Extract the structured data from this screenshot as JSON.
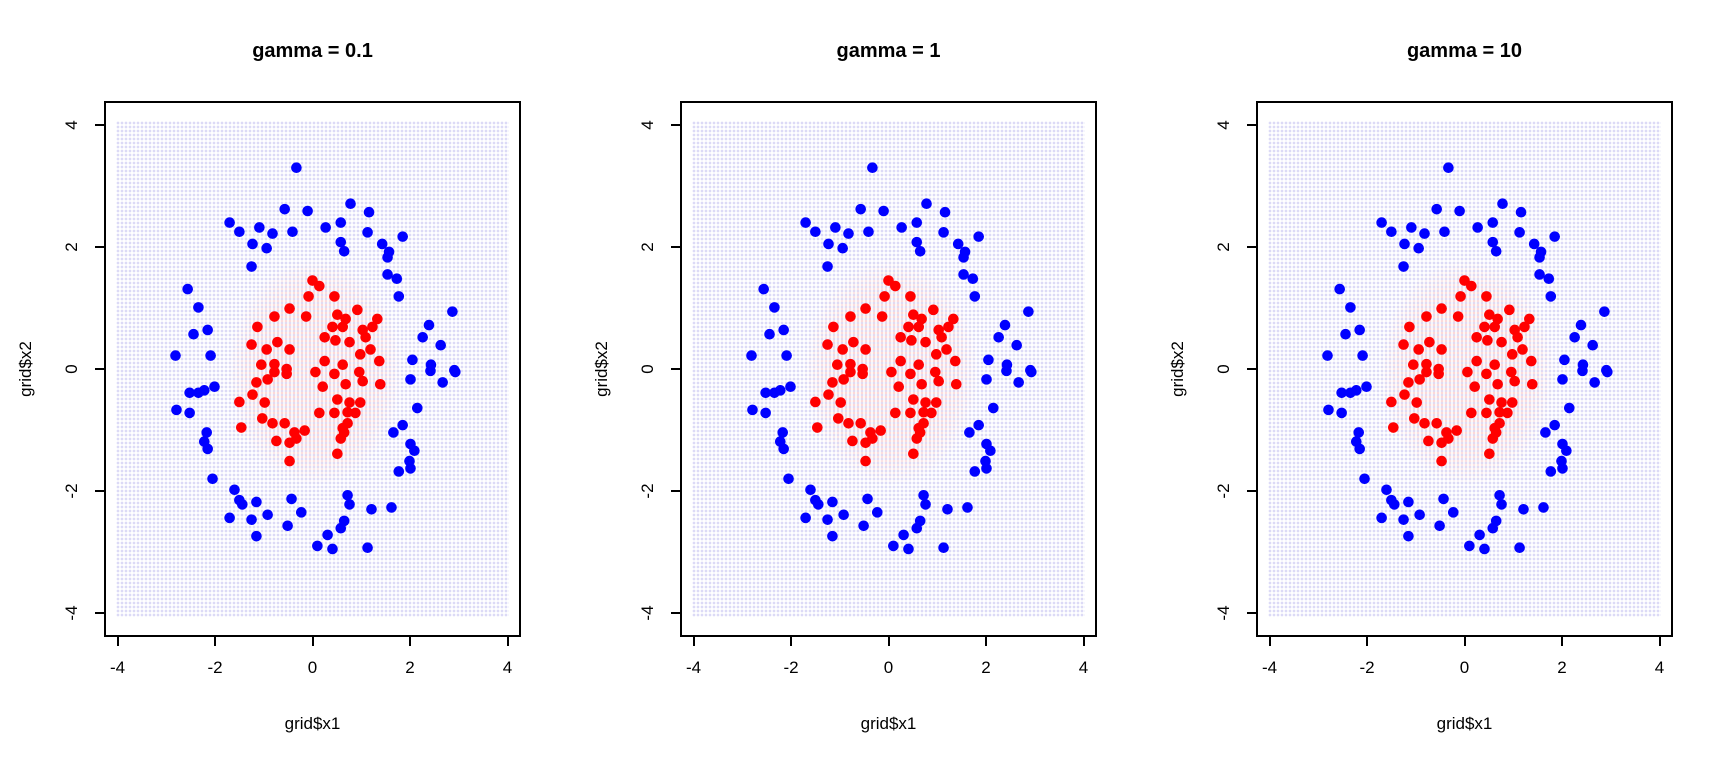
{
  "page": {
    "background": "#ffffff"
  },
  "panels": [
    {
      "title": "gamma = 0.1"
    },
    {
      "title": "gamma = 1"
    },
    {
      "title": "gamma = 10"
    }
  ],
  "axes": {
    "xlabel": "grid$x1",
    "ylabel": "grid$x2",
    "xticks": [
      -4,
      -2,
      0,
      2,
      4
    ],
    "yticks": [
      -4,
      -2,
      0,
      2,
      4
    ]
  },
  "colors": {
    "point_red": "#ff0000",
    "point_blue": "#0000ff",
    "region_outer_dots": "#dcdaf6",
    "region_inner_dots": "#fbd9d9",
    "axis": "#000000",
    "title_text": "#000000"
  },
  "chart_data": {
    "type": "scatter",
    "titles": [
      "gamma = 0.1",
      "gamma = 1",
      "gamma = 10"
    ],
    "xlabel": "grid$x1",
    "ylabel": "grid$x2",
    "xlim": [
      -4.3,
      4.3
    ],
    "ylim": [
      -4.4,
      4.4
    ],
    "xticks": [
      -4,
      -2,
      0,
      2,
      4
    ],
    "yticks": [
      -4,
      -2,
      0,
      2,
      4
    ],
    "grid_on": false,
    "legend": "none",
    "panels_note": "All three panels plot the identical two-class point set; only the shaded SVM decision region (gamma value) differs slightly.",
    "background_regions": {
      "outer_class_color": "#dcdaf6",
      "inner_class_color": "#fbd9d9",
      "inner_center": [
        0.05,
        -0.05
      ],
      "inner_radii": [
        1.78,
        1.85
      ]
    },
    "series": [
      {
        "name": "inner-class-red",
        "color": "#ff0000",
        "points": [
          [
            0.0,
            1.45
          ],
          [
            0.14,
            1.36
          ],
          [
            -0.08,
            1.19
          ],
          [
            0.45,
            1.19
          ],
          [
            0.92,
            0.97
          ],
          [
            -0.47,
            0.99
          ],
          [
            -0.13,
            0.86
          ],
          [
            -0.78,
            0.86
          ],
          [
            0.51,
            0.89
          ],
          [
            0.68,
            0.82
          ],
          [
            1.33,
            0.82
          ],
          [
            -1.13,
            0.69
          ],
          [
            0.41,
            0.69
          ],
          [
            0.62,
            0.69
          ],
          [
            1.03,
            0.64
          ],
          [
            1.23,
            0.69
          ],
          [
            0.25,
            0.52
          ],
          [
            0.47,
            0.47
          ],
          [
            0.76,
            0.44
          ],
          [
            1.09,
            0.52
          ],
          [
            1.19,
            0.32
          ],
          [
            0.98,
            0.24
          ],
          [
            0.25,
            0.13
          ],
          [
            0.62,
            0.07
          ],
          [
            1.37,
            0.13
          ],
          [
            -1.25,
            0.4
          ],
          [
            -0.94,
            0.32
          ],
          [
            -0.72,
            0.44
          ],
          [
            -0.47,
            0.32
          ],
          [
            -1.05,
            0.07
          ],
          [
            -0.78,
            0.08
          ],
          [
            -0.53,
            0.0
          ],
          [
            -1.15,
            -0.22
          ],
          [
            -0.92,
            -0.17
          ],
          [
            -0.78,
            -0.05
          ],
          [
            -0.53,
            -0.08
          ],
          [
            -1.5,
            -0.54
          ],
          [
            -1.23,
            -0.42
          ],
          [
            -0.98,
            -0.55
          ],
          [
            -1.03,
            -0.81
          ],
          [
            -1.46,
            -0.96
          ],
          [
            -0.82,
            -0.89
          ],
          [
            -0.74,
            -1.18
          ],
          [
            -0.57,
            -0.89
          ],
          [
            -0.37,
            -1.04
          ],
          [
            -0.47,
            -1.21
          ],
          [
            -0.33,
            -1.14
          ],
          [
            -0.16,
            -1.01
          ],
          [
            -0.47,
            -1.51
          ],
          [
            0.06,
            -0.05
          ],
          [
            0.45,
            -0.08
          ],
          [
            0.96,
            -0.05
          ],
          [
            1.03,
            -0.2
          ],
          [
            1.39,
            -0.25
          ],
          [
            0.21,
            -0.29
          ],
          [
            0.68,
            -0.25
          ],
          [
            0.51,
            -0.5
          ],
          [
            0.76,
            -0.55
          ],
          [
            0.98,
            -0.55
          ],
          [
            0.14,
            -0.72
          ],
          [
            0.45,
            -0.72
          ],
          [
            0.72,
            -0.71
          ],
          [
            0.88,
            -0.72
          ],
          [
            0.62,
            -0.97
          ],
          [
            0.72,
            -0.89
          ],
          [
            0.58,
            -1.14
          ],
          [
            0.51,
            -1.39
          ],
          [
            0.65,
            -1.04
          ]
        ]
      },
      {
        "name": "outer-class-blue",
        "color": "#0000ff",
        "points": [
          [
            -0.33,
            3.3
          ],
          [
            -0.57,
            2.62
          ],
          [
            -0.1,
            2.59
          ],
          [
            -1.7,
            2.4
          ],
          [
            -1.5,
            2.25
          ],
          [
            -1.09,
            2.32
          ],
          [
            -0.82,
            2.22
          ],
          [
            -0.41,
            2.25
          ],
          [
            -1.23,
            2.05
          ],
          [
            -0.94,
            1.98
          ],
          [
            -1.25,
            1.68
          ],
          [
            -2.56,
            1.31
          ],
          [
            -2.34,
            1.01
          ],
          [
            -2.44,
            0.57
          ],
          [
            -2.15,
            0.64
          ],
          [
            -2.81,
            0.22
          ],
          [
            -2.09,
            0.22
          ],
          [
            0.78,
            2.71
          ],
          [
            0.27,
            2.32
          ],
          [
            0.58,
            2.4
          ],
          [
            1.13,
            2.24
          ],
          [
            1.16,
            2.57
          ],
          [
            0.58,
            2.08
          ],
          [
            0.65,
            1.93
          ],
          [
            1.43,
            2.05
          ],
          [
            1.57,
            1.92
          ],
          [
            1.85,
            2.17
          ],
          [
            1.54,
            1.83
          ],
          [
            1.54,
            1.55
          ],
          [
            1.73,
            1.48
          ],
          [
            1.77,
            1.19
          ],
          [
            2.87,
            0.94
          ],
          [
            2.39,
            0.72
          ],
          [
            2.26,
            0.52
          ],
          [
            2.63,
            0.39
          ],
          [
            2.05,
            0.15
          ],
          [
            2.43,
            0.07
          ],
          [
            2.91,
            -0.02
          ],
          [
            -2.52,
            -0.39
          ],
          [
            -2.34,
            -0.39
          ],
          [
            -2.22,
            -0.35
          ],
          [
            -2.01,
            -0.29
          ],
          [
            -2.79,
            -0.67
          ],
          [
            -2.52,
            -0.72
          ],
          [
            -2.17,
            -1.04
          ],
          [
            -2.22,
            -1.19
          ],
          [
            -2.15,
            -1.31
          ],
          [
            -2.05,
            -1.8
          ],
          [
            -1.6,
            -1.98
          ],
          [
            -1.5,
            -2.15
          ],
          [
            -1.44,
            -2.22
          ],
          [
            -1.15,
            -2.18
          ],
          [
            -1.7,
            -2.44
          ],
          [
            -1.25,
            -2.47
          ],
          [
            -0.92,
            -2.39
          ],
          [
            -0.43,
            -2.13
          ],
          [
            -0.23,
            -2.35
          ],
          [
            -0.51,
            -2.57
          ],
          [
            -1.15,
            -2.74
          ],
          [
            2.01,
            -0.17
          ],
          [
            2.42,
            -0.03
          ],
          [
            2.67,
            -0.22
          ],
          [
            2.93,
            -0.05
          ],
          [
            2.15,
            -0.64
          ],
          [
            1.85,
            -0.92
          ],
          [
            1.66,
            -1.04
          ],
          [
            2.01,
            -1.23
          ],
          [
            2.09,
            -1.34
          ],
          [
            1.99,
            -1.51
          ],
          [
            2.01,
            -1.63
          ],
          [
            1.77,
            -1.68
          ],
          [
            0.72,
            -2.07
          ],
          [
            0.76,
            -2.22
          ],
          [
            1.21,
            -2.3
          ],
          [
            1.62,
            -2.27
          ],
          [
            0.65,
            -2.49
          ],
          [
            0.58,
            -2.61
          ],
          [
            0.31,
            -2.72
          ],
          [
            0.1,
            -2.9
          ],
          [
            0.41,
            -2.95
          ],
          [
            1.13,
            -2.93
          ]
        ]
      }
    ]
  }
}
